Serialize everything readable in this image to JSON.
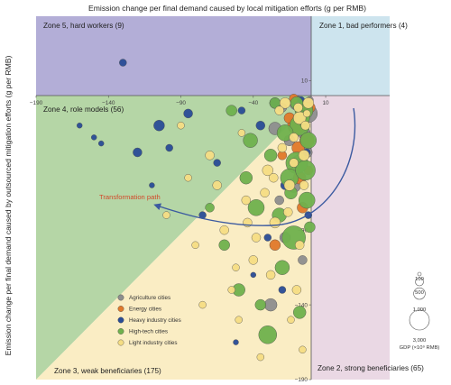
{
  "chart_data": {
    "type": "scatter",
    "title": "Emission change per final demand caused by local mitigation efforts (g per RMB)",
    "xlabel": "Emission change per final demand caused by local mitigation efforts (g per RMB)",
    "ylabel": "Emission change per final demand caused by outsourced mitigation efforts (g per RMB)",
    "xlim": [
      -190,
      35
    ],
    "ylim": [
      -190,
      35
    ],
    "x_ticks": [
      -190,
      -140,
      -90,
      -40,
      10
    ],
    "y_ticks": [
      10,
      -40,
      -90,
      -140,
      -190
    ],
    "x_tick_labels": [
      "−190",
      "−140",
      "−90",
      "−40",
      "10"
    ],
    "y_tick_labels": [
      "10",
      "−40",
      "−90",
      "−140",
      "−190"
    ],
    "zones": [
      {
        "label": "Zone 1, bad performers (4)",
        "color": "#cde4ee"
      },
      {
        "label": "Zone 2, strong beneficiaries (65)",
        "color": "#ead8e4"
      },
      {
        "label": "Zone 3, weak beneficiaries (175)",
        "color": "#faedc4"
      },
      {
        "label": "Zone 4, role models (56)",
        "color": "#b5d6a6"
      },
      {
        "label": "Zone 5, hard workers (9)",
        "color": "#b3aed7"
      }
    ],
    "annotation": "Transformation path",
    "legend_position": "bottom-left",
    "series": [
      {
        "name": "Agriculture cities",
        "color": "#8e8e8e",
        "points": [
          [
            -10,
            -5,
            8
          ],
          [
            -2,
            -12,
            10
          ],
          [
            -15,
            -30,
            6
          ],
          [
            -8,
            -45,
            9
          ],
          [
            -20,
            -8,
            5
          ],
          [
            -5,
            -25,
            7
          ],
          [
            -12,
            -60,
            8
          ],
          [
            -18,
            -95,
            6
          ],
          [
            -6,
            -110,
            5
          ],
          [
            -25,
            -22,
            7
          ],
          [
            -3,
            -38,
            6
          ],
          [
            -28,
            -140,
            7
          ],
          [
            -22,
            -70,
            5
          ],
          [
            -1,
            -3,
            4
          ]
        ]
      },
      {
        "name": "Energy cities",
        "color": "#e0792a",
        "points": [
          [
            -5,
            -10,
            9
          ],
          [
            -10,
            -20,
            10
          ],
          [
            -3,
            -30,
            8
          ],
          [
            -8,
            -55,
            7
          ],
          [
            -15,
            -15,
            6
          ],
          [
            -1,
            -8,
            6
          ],
          [
            -20,
            -40,
            5
          ],
          [
            -6,
            -75,
            6
          ],
          [
            -12,
            -2,
            5
          ],
          [
            -2,
            -50,
            5
          ],
          [
            -25,
            -100,
            6
          ],
          [
            -9,
            -35,
            7
          ]
        ]
      },
      {
        "name": "Heavy industry cities",
        "color": "#294c96",
        "points": [
          [
            -130,
            22,
            4
          ],
          [
            -120,
            -38,
            5
          ],
          [
            -105,
            -20,
            6
          ],
          [
            -98,
            -35,
            4
          ],
          [
            -150,
            -28,
            3
          ],
          [
            -145,
            -32,
            3
          ],
          [
            -85,
            -12,
            5
          ],
          [
            -75,
            -80,
            4
          ],
          [
            -52,
            -165,
            3
          ],
          [
            -48,
            -10,
            4
          ],
          [
            -35,
            -20,
            5
          ],
          [
            -25,
            -5,
            6
          ],
          [
            -18,
            -60,
            5
          ],
          [
            -10,
            -15,
            4
          ],
          [
            -40,
            -120,
            3
          ],
          [
            -65,
            -45,
            4
          ],
          [
            -2,
            -80,
            4
          ],
          [
            -160,
            -20,
            3
          ],
          [
            -110,
            -60,
            3
          ],
          [
            -30,
            -95,
            4
          ],
          [
            -7,
            -3,
            4
          ],
          [
            -3,
            -38,
            4
          ],
          [
            -20,
            -130,
            4
          ]
        ]
      },
      {
        "name": "High-tech cities",
        "color": "#6fb14d",
        "points": [
          [
            -5,
            -10,
            10
          ],
          [
            -8,
            -20,
            11
          ],
          [
            -2,
            -30,
            9
          ],
          [
            -10,
            -45,
            12
          ],
          [
            -15,
            -55,
            10
          ],
          [
            -3,
            -70,
            9
          ],
          [
            -12,
            -95,
            13
          ],
          [
            -6,
            -15,
            8
          ],
          [
            -18,
            -25,
            9
          ],
          [
            -4,
            -50,
            11
          ],
          [
            -25,
            -5,
            6
          ],
          [
            -42,
            -30,
            8
          ],
          [
            -38,
            -75,
            9
          ],
          [
            -60,
            -100,
            6
          ],
          [
            -50,
            -130,
            7
          ],
          [
            -20,
            -115,
            8
          ],
          [
            -30,
            -160,
            10
          ],
          [
            -8,
            -145,
            7
          ],
          [
            -22,
            -80,
            8
          ],
          [
            -45,
            -55,
            7
          ],
          [
            -14,
            -65,
            7
          ],
          [
            -35,
            -140,
            6
          ],
          [
            -1,
            -88,
            6
          ],
          [
            -55,
            -10,
            6
          ],
          [
            -70,
            -75,
            5
          ],
          [
            -28,
            -40,
            7
          ],
          [
            -10,
            -5,
            7
          ]
        ]
      },
      {
        "name": "Light industry cities",
        "color": "#f5dd84",
        "points": [
          [
            -2,
            -5,
            6
          ],
          [
            -8,
            -15,
            7
          ],
          [
            -12,
            -28,
            5
          ],
          [
            -5,
            -40,
            6
          ],
          [
            -20,
            -35,
            5
          ],
          [
            -30,
            -50,
            6
          ],
          [
            -45,
            -70,
            5
          ],
          [
            -60,
            -90,
            5
          ],
          [
            -80,
            -100,
            4
          ],
          [
            -15,
            -60,
            6
          ],
          [
            -25,
            -85,
            6
          ],
          [
            -40,
            -110,
            5
          ],
          [
            -10,
            -130,
            5
          ],
          [
            -50,
            -150,
            4
          ],
          [
            -35,
            -175,
            4
          ],
          [
            -5,
            -60,
            5
          ],
          [
            -18,
            -5,
            6
          ],
          [
            -70,
            -40,
            5
          ],
          [
            -90,
            -20,
            4
          ],
          [
            -100,
            -80,
            4
          ],
          [
            -22,
            -10,
            5
          ],
          [
            -8,
            -100,
            5
          ],
          [
            -4,
            -20,
            5
          ],
          [
            -28,
            -120,
            5
          ],
          [
            -55,
            -130,
            4
          ],
          [
            -65,
            -60,
            5
          ],
          [
            -12,
            -45,
            5
          ],
          [
            -32,
            -65,
            5
          ],
          [
            -48,
            -25,
            4
          ],
          [
            -14,
            -150,
            4
          ],
          [
            -6,
            -170,
            4
          ],
          [
            -75,
            -140,
            4
          ],
          [
            -85,
            -55,
            4
          ],
          [
            -38,
            -95,
            5
          ],
          [
            -16,
            -78,
            5
          ],
          [
            -26,
            -55,
            5
          ],
          [
            -44,
            -85,
            5
          ],
          [
            -52,
            -115,
            4
          ],
          [
            -9,
            -8,
            5
          ],
          [
            -3,
            -12,
            4
          ]
        ]
      }
    ],
    "size_legend": {
      "title": "GDP (×10⁹ RMB)",
      "values": [
        100,
        500,
        1000,
        3000
      ],
      "labels": [
        "100",
        "500",
        "1,000",
        "3,000"
      ]
    }
  }
}
